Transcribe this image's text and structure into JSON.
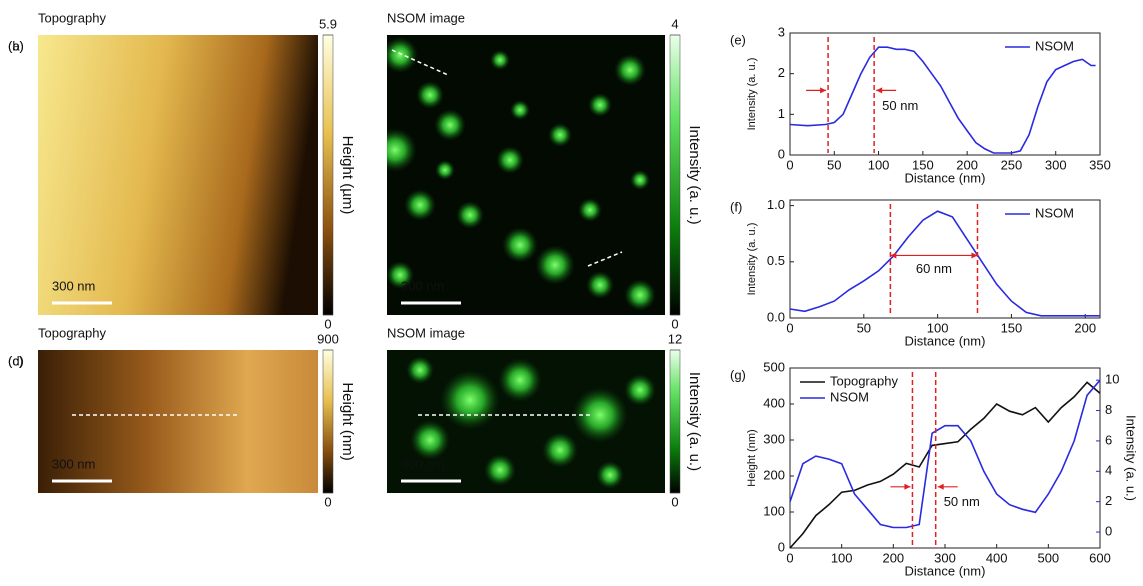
{
  "chart_data": [
    {
      "type": "image",
      "panel": "(a)",
      "title": "Topography",
      "scale_bar": "300 nm",
      "colorbar_label": "Height (µm)",
      "clim": [
        0,
        5.9
      ],
      "cticks": [
        0,
        5.9
      ]
    },
    {
      "type": "image",
      "panel": "(b)",
      "title": "NSOM image",
      "scale_bar": "300 nm",
      "colorbar_label": "Intensity (a. u.)",
      "clim": [
        0,
        4
      ],
      "cticks": [
        0,
        4
      ]
    },
    {
      "type": "image",
      "panel": "(c)",
      "title": "Topography",
      "scale_bar": "300 nm",
      "colorbar_label": "Height (nm)",
      "clim": [
        0,
        900
      ],
      "cticks": [
        0,
        900
      ]
    },
    {
      "type": "image",
      "panel": "(d)",
      "title": "NSOM image",
      "scale_bar": "300 nm",
      "colorbar_label": "Intensity (a. u.)",
      "clim": [
        0,
        12
      ],
      "cticks": [
        0,
        12
      ]
    },
    {
      "type": "line",
      "panel": "(e)",
      "xlabel": "Distance (nm)",
      "ylabel": "Intensity (a. u.)",
      "x": [
        0,
        20,
        40,
        50,
        60,
        70,
        80,
        90,
        100,
        110,
        120,
        130,
        140,
        150,
        160,
        170,
        180,
        190,
        200,
        210,
        220,
        230,
        240,
        250,
        260,
        270,
        280,
        290,
        300,
        310,
        320,
        330,
        340,
        345
      ],
      "series": [
        {
          "name": "NSOM",
          "color": "#2a2ae0",
          "values": [
            0.75,
            0.72,
            0.75,
            0.8,
            1.0,
            1.5,
            2.0,
            2.4,
            2.65,
            2.65,
            2.6,
            2.6,
            2.55,
            2.3,
            2.0,
            1.7,
            1.3,
            0.9,
            0.6,
            0.3,
            0.15,
            0.05,
            0.05,
            0.05,
            0.1,
            0.5,
            1.2,
            1.8,
            2.1,
            2.2,
            2.3,
            2.35,
            2.2,
            2.2
          ]
        }
      ],
      "xlim": [
        0,
        350
      ],
      "xticks": [
        0,
        50,
        100,
        150,
        200,
        250,
        300,
        350
      ],
      "ylim": [
        0,
        3
      ],
      "yticks": [
        0,
        1,
        2,
        3
      ],
      "vlines": [
        43,
        95
      ],
      "vline_color": "#e02020",
      "annotation": "50 nm",
      "legend": "upper right"
    },
    {
      "type": "line",
      "panel": "(f)",
      "xlabel": "Distance (nm)",
      "ylabel": "Intensity (a. u.)",
      "x": [
        0,
        10,
        20,
        30,
        40,
        50,
        60,
        70,
        80,
        90,
        100,
        110,
        120,
        130,
        140,
        150,
        160,
        170,
        180,
        190,
        200,
        210
      ],
      "series": [
        {
          "name": "NSOM",
          "color": "#2a2ae0",
          "values": [
            0.08,
            0.06,
            0.1,
            0.15,
            0.25,
            0.33,
            0.42,
            0.55,
            0.72,
            0.87,
            0.95,
            0.9,
            0.7,
            0.5,
            0.3,
            0.15,
            0.05,
            0.02,
            0.02,
            0.02,
            0.02,
            0.02
          ]
        }
      ],
      "xlim": [
        0,
        210
      ],
      "xticks": [
        0,
        50,
        100,
        150,
        200
      ],
      "ylim": [
        0,
        1.05
      ],
      "yticks": [
        {
          "value": 0,
          "label": "0.0"
        },
        {
          "value": 0.5,
          "label": "0.5"
        },
        {
          "value": 1,
          "label": "1.0"
        }
      ],
      "vlines": [
        68,
        127
      ],
      "vline_color": "#e02020",
      "annotation": "60 nm",
      "legend": "upper right"
    },
    {
      "type": "line",
      "panel": "(g)",
      "xlabel": "Distance (nm)",
      "ylabel": "Height (nm)",
      "y2label": "Intensity (a. u.)",
      "x": [
        0,
        25,
        50,
        75,
        100,
        125,
        150,
        175,
        200,
        225,
        250,
        275,
        300,
        325,
        350,
        375,
        400,
        425,
        450,
        475,
        500,
        525,
        550,
        575,
        600
      ],
      "series": [
        {
          "name": "Topography",
          "color": "#111111",
          "values": [
            0,
            40,
            90,
            120,
            155,
            160,
            175,
            185,
            205,
            235,
            225,
            285,
            290,
            295,
            330,
            360,
            400,
            380,
            370,
            390,
            350,
            390,
            420,
            460,
            430
          ]
        },
        {
          "name": "NSOM",
          "color": "#2a2ae0",
          "axis": "y2",
          "values": [
            2,
            4.5,
            5,
            4.8,
            4.5,
            2.5,
            1.5,
            0.5,
            0.3,
            0.3,
            0.5,
            6.5,
            7,
            7,
            6,
            4,
            2.5,
            1.8,
            1.5,
            1.3,
            2.5,
            4,
            6,
            9,
            10
          ]
        }
      ],
      "xlim": [
        0,
        600
      ],
      "xticks": [
        0,
        100,
        200,
        300,
        400,
        500,
        600
      ],
      "ylim": [
        0,
        500
      ],
      "yticks": [
        0,
        100,
        200,
        300,
        400,
        500
      ],
      "y2lim": [
        -1.05,
        10.8
      ],
      "y2ticks": [
        0,
        2,
        4,
        6,
        8,
        10
      ],
      "y2color": "#2a2ae0",
      "vlines": [
        237,
        282
      ],
      "vline_color": "#e02020",
      "annotation": "50 nm",
      "legend": "upper left"
    }
  ]
}
